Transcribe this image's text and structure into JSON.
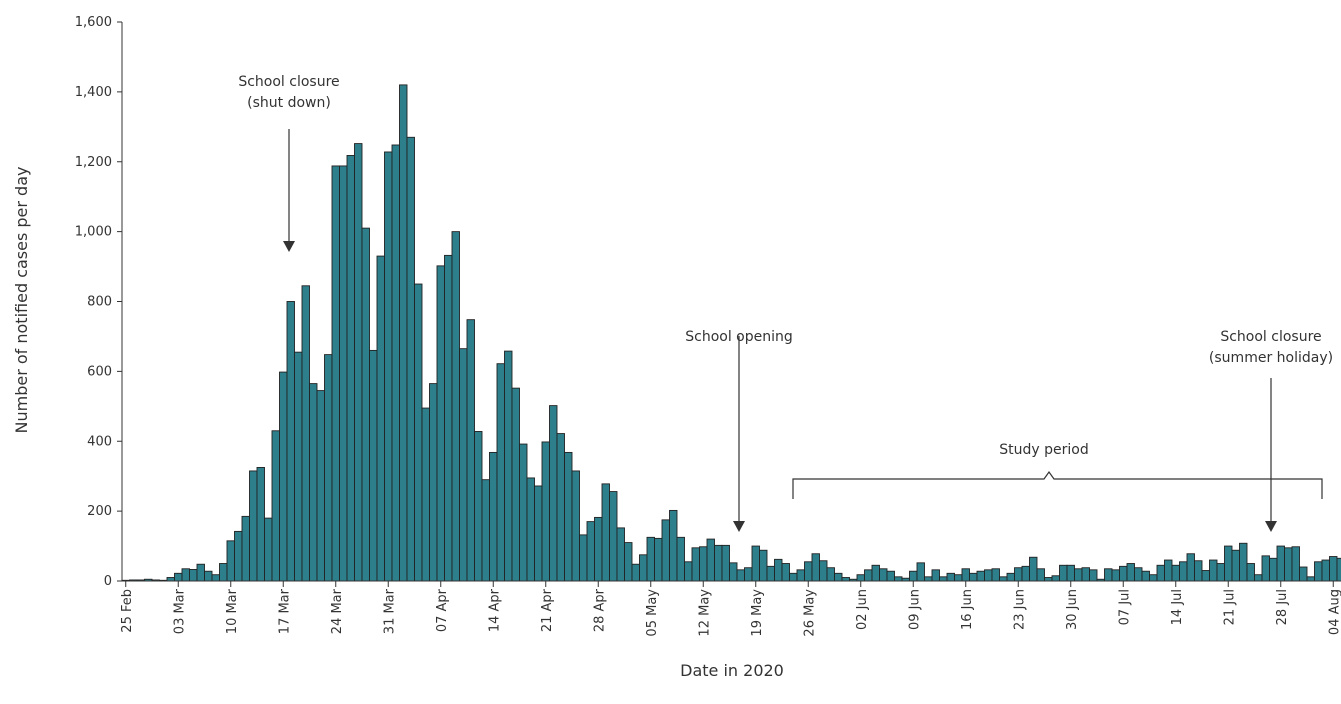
{
  "chart_data": {
    "type": "bar",
    "xlabel": "Date in 2020",
    "ylabel": "Number of notified cases per day",
    "ylim": [
      0,
      1600
    ],
    "yticks": [
      0,
      200,
      400,
      600,
      800,
      1000,
      1200,
      1400,
      1600
    ],
    "ytick_labels": [
      "0",
      "200",
      "400",
      "600",
      "800",
      "1,000",
      "1,200",
      "1,400",
      "1,600"
    ],
    "xtick_labels": [
      "25 Feb",
      "03 Mar",
      "10 Mar",
      "17 Mar",
      "24 Mar",
      "31 Mar",
      "07 Apr",
      "14 Apr",
      "21 Apr",
      "28 Apr",
      "05 May",
      "12 May",
      "19 May",
      "26 May",
      "02 Jun",
      "09 Jun",
      "16 Jun",
      "23 Jun",
      "30 Jun",
      "07 Jul",
      "14 Jul",
      "21 Jul",
      "28 Jul",
      "04 Aug"
    ],
    "start_date": "2020-02-25",
    "values": [
      2,
      3,
      3,
      5,
      3,
      2,
      10,
      22,
      35,
      33,
      48,
      28,
      18,
      50,
      115,
      142,
      185,
      315,
      325,
      180,
      430,
      598,
      800,
      655,
      845,
      565,
      545,
      648,
      1188,
      1188,
      1218,
      1252,
      1010,
      660,
      930,
      1228,
      1248,
      1420,
      1270,
      850,
      495,
      565,
      902,
      932,
      1000,
      665,
      748,
      428,
      290,
      368,
      622,
      658,
      552,
      392,
      295,
      272,
      398,
      502,
      422,
      368,
      315,
      132,
      170,
      182,
      278,
      256,
      152,
      110,
      48,
      75,
      125,
      122,
      175,
      202,
      125,
      55,
      95,
      98,
      120,
      102,
      102,
      52,
      32,
      38,
      100,
      88,
      42,
      62,
      50,
      22,
      32,
      55,
      78,
      58,
      38,
      22,
      10,
      5,
      18,
      32,
      45,
      35,
      28,
      12,
      8,
      28,
      52,
      12,
      32,
      12,
      22,
      18,
      35,
      22,
      28,
      32,
      35,
      12,
      22,
      38,
      42,
      68,
      35,
      10,
      15,
      45,
      45,
      35,
      38,
      32,
      5,
      35,
      32,
      42,
      50,
      38,
      28,
      18,
      45,
      60,
      45,
      55,
      78,
      58,
      30,
      60,
      50,
      100,
      88,
      108,
      50,
      18,
      72,
      65,
      100,
      95,
      98,
      40,
      12,
      55,
      60,
      70,
      65
    ]
  },
  "annotations": {
    "closure1_line1": "School closure",
    "closure1_line2": "(shut down)",
    "opening": "School opening",
    "closure2_line1": "School closure",
    "closure2_line2": "(summer holiday)",
    "study_period": "Study period"
  }
}
